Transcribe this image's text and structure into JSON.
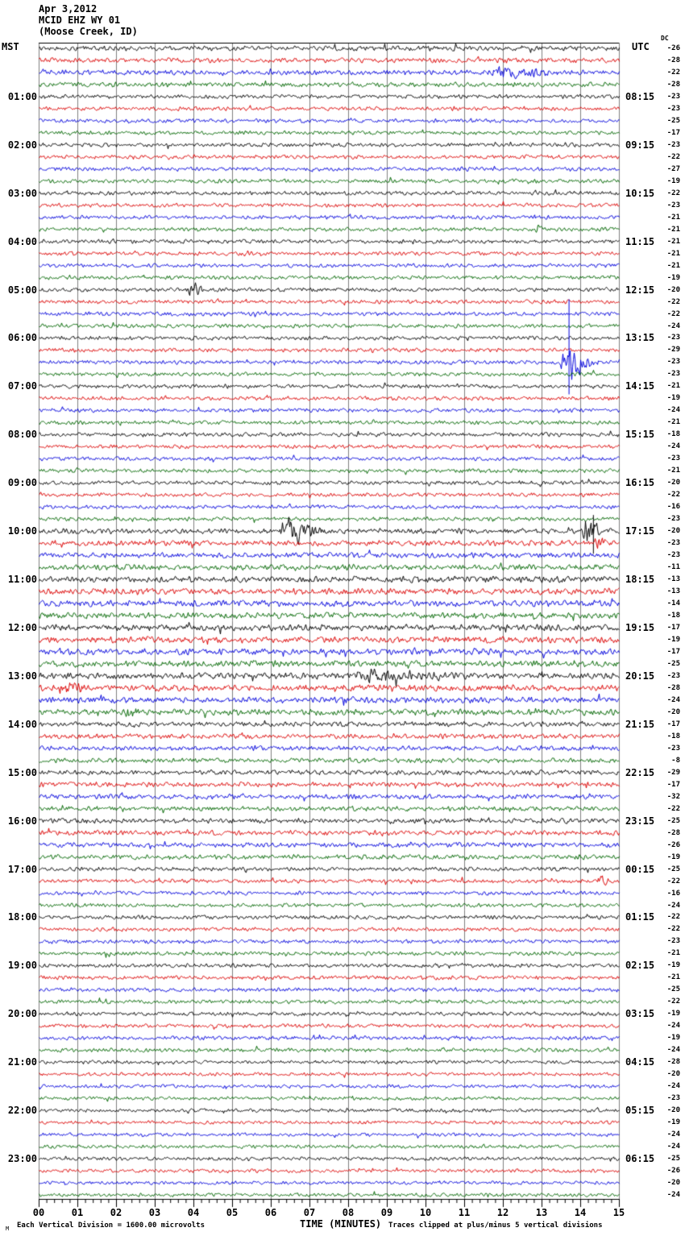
{
  "title": {
    "date": "Apr 3,2012",
    "station": "MCID EHZ WY 01",
    "location": "(Moose Creek, ID)"
  },
  "axes": {
    "left_header": "MST",
    "right_header": "UTC",
    "dc_header": "DC",
    "xlabel": "TIME (MINUTES)",
    "x_ticks": [
      "00",
      "01",
      "02",
      "03",
      "04",
      "05",
      "06",
      "07",
      "08",
      "09",
      "10",
      "11",
      "12",
      "13",
      "14",
      "15"
    ],
    "footnote_left": "Each Vertical Division = 1600.00 microvolts",
    "footnote_right": "Traces clipped at plus/minus 5 vertical divisions",
    "corner_mark": "M"
  },
  "chart_data": {
    "type": "line",
    "kind": "helicorder-seismogram",
    "minutes_per_line": 15,
    "lines_per_hour": 4,
    "rows": 96,
    "x_range": [
      0,
      15
    ],
    "grid": "vertical-minute-lines",
    "trace_colors": [
      "#000000",
      "#dd0000",
      "#0000dd",
      "#006600"
    ],
    "grid_color": "#808080",
    "left_time_labels": [
      "01:00",
      "02:00",
      "03:00",
      "04:00",
      "05:00",
      "06:00",
      "07:00",
      "08:00",
      "09:00",
      "10:00",
      "11:00",
      "12:00",
      "13:00",
      "14:00",
      "15:00",
      "16:00",
      "17:00",
      "18:00",
      "19:00",
      "20:00",
      "21:00",
      "22:00",
      "23:00"
    ],
    "right_time_labels": [
      "08:15",
      "09:15",
      "10:15",
      "11:15",
      "12:15",
      "13:15",
      "14:15",
      "15:15",
      "16:15",
      "17:15",
      "18:15",
      "19:15",
      "20:15",
      "21:15",
      "22:15",
      "23:15",
      "00:15",
      "01:15",
      "02:15",
      "03:15",
      "04:15",
      "05:15",
      "06:15"
    ],
    "dc_values": [
      -26,
      -28,
      -22,
      -28,
      -23,
      -23,
      -25,
      -17,
      -23,
      -22,
      -27,
      -19,
      -22,
      -23,
      -21,
      -21,
      -21,
      -21,
      -21,
      -19,
      -20,
      -22,
      -22,
      -24,
      -23,
      -29,
      -23,
      -23,
      -21,
      -19,
      -24,
      -21,
      -18,
      -24,
      -23,
      -21,
      -20,
      -22,
      -16,
      -23,
      -20,
      -23,
      -23,
      -11,
      -13,
      -13,
      -14,
      -18,
      -17,
      -19,
      -17,
      -25,
      -23,
      -28,
      -24,
      -20,
      -17,
      -18,
      -23,
      -8,
      -29,
      -17,
      -32,
      -22,
      -25,
      -28,
      -26,
      -19,
      -25,
      -22,
      -16,
      -24,
      -22,
      -22,
      -23,
      -21,
      -19,
      -21,
      -25,
      -22,
      -19,
      -24,
      -19,
      -24,
      -28,
      -20,
      -24,
      -23,
      -20,
      -19,
      -24,
      -24,
      -25,
      -26,
      -20,
      -24
    ],
    "events": [
      {
        "row": 2,
        "start": 11.4,
        "end": 13.8,
        "amp": 5
      },
      {
        "row": 15,
        "start": 12.85,
        "end": 13.05,
        "amp": 6
      },
      {
        "row": 20,
        "start": 3.8,
        "end": 4.35,
        "amp": 8
      },
      {
        "row": 26,
        "start": 13.45,
        "end": 14.5,
        "amp": 20,
        "spike": {
          "minute": 13.7,
          "up": 78,
          "down": 40
        }
      },
      {
        "row": 40,
        "start": 6.2,
        "end": 7.5,
        "amp": 14
      },
      {
        "row": 40,
        "start": 14.05,
        "end": 14.6,
        "amp": 16,
        "spike": {
          "minute": 14.33,
          "up": 20,
          "down": 28
        }
      },
      {
        "row": 41,
        "start": 14.3,
        "end": 14.75,
        "amp": 5
      },
      {
        "row": 52,
        "start": 8.0,
        "end": 11.2,
        "amp": 5
      },
      {
        "row": 53,
        "start": 0.5,
        "end": 1.2,
        "amp": 7
      },
      {
        "row": 55,
        "start": 2.2,
        "end": 2.6,
        "amp": 5
      },
      {
        "row": 69,
        "start": 14.4,
        "end": 14.9,
        "amp": 5
      }
    ],
    "noise_levels": [
      {
        "from": 0,
        "to": 3,
        "factor": 1.25
      },
      {
        "from": 40,
        "to": 43,
        "factor": 1.4
      },
      {
        "from": 44,
        "to": 55,
        "factor": 1.6
      },
      {
        "from": 56,
        "to": 67,
        "factor": 1.25
      },
      {
        "from": 84,
        "to": 95,
        "factor": 0.9
      }
    ],
    "clip_divisions": 5,
    "microvolts_per_division": "1600.00"
  }
}
